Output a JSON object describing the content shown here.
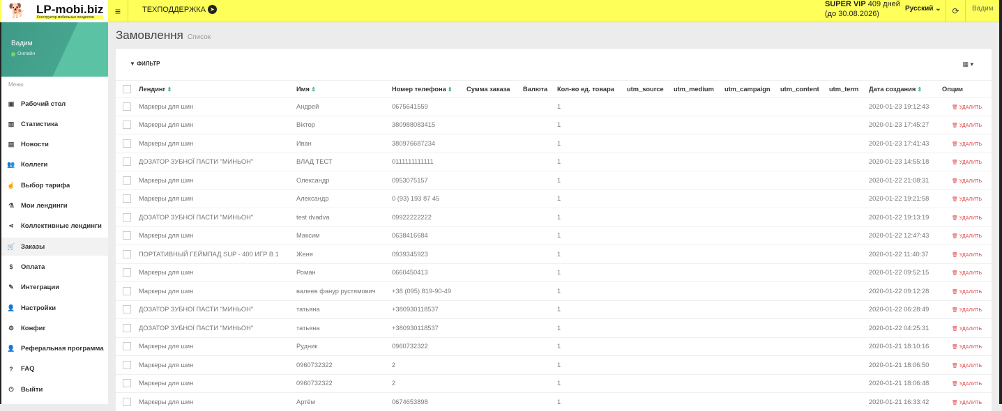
{
  "header": {
    "logo": "LP-mobi.biz",
    "logo_sub": "Конструктор мобильных лендингов",
    "support": "ТЕХПОДДЕРЖКА",
    "plan": "SUPER VIP",
    "days": "409 дней",
    "until": "(до 30.08.2026)",
    "language": "Русский",
    "user": "Вадим"
  },
  "sidebar": {
    "user": "Вадим",
    "status": "Онлайн",
    "menu_label": "Меню",
    "items": [
      {
        "label": "Рабочий стол",
        "icon": "▣"
      },
      {
        "label": "Статистика",
        "icon": "▥"
      },
      {
        "label": "Новости",
        "icon": "▤"
      },
      {
        "label": "Коллеги",
        "icon": "👥"
      },
      {
        "label": "Выбор тарифа",
        "icon": "☝"
      },
      {
        "label": "Мои лендинги",
        "icon": "⚗"
      },
      {
        "label": "Коллективные лендинги",
        "icon": "⋖"
      },
      {
        "label": "Заказы",
        "icon": "🛒",
        "active": true
      },
      {
        "label": "Оплата",
        "icon": "$"
      },
      {
        "label": "Интеграции",
        "icon": "✎"
      },
      {
        "label": "Настройки",
        "icon": "👤"
      },
      {
        "label": "Конфиг",
        "icon": "⚙"
      },
      {
        "label": "Реферальная программа",
        "icon": "👤"
      },
      {
        "label": "FAQ",
        "icon": "?"
      },
      {
        "label": "Выйти",
        "icon": "⏻"
      }
    ]
  },
  "page": {
    "title": "Замовлення",
    "subtitle": "Список",
    "filter": "ФИЛЬТР",
    "delete_label": "УДАЛИТЬ"
  },
  "table": {
    "columns": [
      "Лендинг",
      "Имя",
      "Номер телефона",
      "Сумма заказа",
      "Валюта",
      "Кол-во ед. товара",
      "utm_source",
      "utm_medium",
      "utm_campaign",
      "utm_content",
      "utm_term",
      "Дата создания",
      "Опции"
    ],
    "rows": [
      [
        "Маркеры для шин",
        "Андрей",
        "0675641559",
        "1",
        "2020-01-23 19:12:43"
      ],
      [
        "Маркеры для шин",
        "Віктор",
        "380988083415",
        "1",
        "2020-01-23 17:45:27"
      ],
      [
        "Маркеры для шин",
        "Иван",
        "380976687234",
        "1",
        "2020-01-23 17:41:43"
      ],
      [
        "ДОЗАТОР ЗУБНОЇ ПАСТИ \"МИНЬОН\"",
        "ВЛАД ТЕСТ",
        "0111111111111",
        "1",
        "2020-01-23 14:55:18"
      ],
      [
        "Маркеры для шин",
        "Олександр",
        "0953075157",
        "1",
        "2020-01-22 21:08:31"
      ],
      [
        "Маркеры для шин",
        "Александр",
        "0 (93) 193 87 45",
        "1",
        "2020-01-22 19:21:58"
      ],
      [
        "ДОЗАТОР ЗУБНОЇ ПАСТИ \"МИНЬОН\"",
        "test dvadva",
        "09922222222",
        "1",
        "2020-01-22 19:13:19"
      ],
      [
        "Маркеры для шин",
        "Максим",
        "0638416684",
        "1",
        "2020-01-22 12:47:43"
      ],
      [
        "ПОРТАТИВНЫЙ ГЕЙМПАД SUP - 400 ИГР В 1",
        "Женя",
        "0939345923",
        "1",
        "2020-01-22 11:40:37"
      ],
      [
        "Маркеры для шин",
        "Роман",
        "0660450413",
        "1",
        "2020-01-22 09:52:15"
      ],
      [
        "Маркеры для шин",
        "валеев фанур рустямович",
        "+38 (095) 819-90-49",
        "1",
        "2020-01-22 09:12:28"
      ],
      [
        "ДОЗАТОР ЗУБНОЇ ПАСТИ \"МИНЬОН\"",
        "татьяна",
        "+380930118537",
        "1",
        "2020-01-22 06:28:49"
      ],
      [
        "ДОЗАТОР ЗУБНОЇ ПАСТИ \"МИНЬОН\"",
        "татьяна",
        "+380930118537",
        "1",
        "2020-01-22 04:25:31"
      ],
      [
        "Маркеры для шин",
        "Рудник",
        "0960732322",
        "1",
        "2020-01-21 18:10:16"
      ],
      [
        "Маркеры для шин",
        "0960732322",
        "2",
        "1",
        "2020-01-21 18:06:50"
      ],
      [
        "Маркеры для шин",
        "0960732322",
        "2",
        "1",
        "2020-01-21 18:06:48"
      ],
      [
        "Маркеры для шин",
        "Артём",
        "0674653898",
        "1",
        "2020-01-21 16:33:42"
      ]
    ]
  },
  "colors": {
    "topbar": "#ffff59",
    "accent": "#3aa08a",
    "danger": "#e04848"
  }
}
